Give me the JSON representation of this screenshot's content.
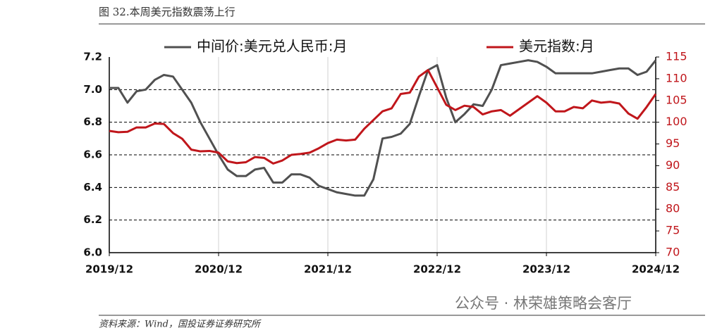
{
  "chart_data": {
    "type": "line",
    "title": "图 32.本周美元指数震荡上行",
    "source": "资料来源：Wind，国投证券证券研究所",
    "watermark": "公众号 · 林荣雄策略会客厅",
    "categories": [
      "2019/12",
      null,
      null,
      null,
      null,
      null,
      null,
      null,
      null,
      null,
      null,
      null,
      "2020/12",
      null,
      null,
      null,
      null,
      null,
      null,
      null,
      null,
      null,
      null,
      null,
      "2021/12",
      null,
      null,
      null,
      null,
      null,
      null,
      null,
      null,
      null,
      null,
      null,
      "2022/12",
      null,
      null,
      null,
      null,
      null,
      null,
      null,
      null,
      null,
      null,
      null,
      "2023/12",
      null,
      null,
      null,
      null,
      null,
      null,
      null,
      null,
      null,
      null,
      null,
      "2024/12"
    ],
    "series": [
      {
        "name": "中间价:美元兑人民币:月",
        "color": "#505050",
        "axis": "y",
        "values": [
          7.01,
          7.01,
          6.92,
          6.99,
          7.0,
          7.06,
          7.09,
          7.08,
          7.0,
          6.92,
          6.8,
          6.7,
          6.6,
          6.51,
          6.47,
          6.47,
          6.51,
          6.52,
          6.43,
          6.43,
          6.48,
          6.48,
          6.46,
          6.41,
          6.39,
          6.37,
          6.36,
          6.35,
          6.35,
          6.45,
          6.7,
          6.71,
          6.73,
          6.79,
          6.96,
          7.12,
          7.15,
          6.95,
          6.8,
          6.85,
          6.91,
          6.9,
          7.0,
          7.15,
          7.16,
          7.17,
          7.18,
          7.17,
          7.14,
          7.1,
          7.1,
          7.1,
          7.1,
          7.1,
          7.11,
          7.12,
          7.13,
          7.13,
          7.09,
          7.11,
          7.18
        ]
      },
      {
        "name": "美元指数:月",
        "color": "#c0161b",
        "axis": "y2",
        "values": [
          98.0,
          97.7,
          97.8,
          98.8,
          98.8,
          99.7,
          99.6,
          97.5,
          96.2,
          93.7,
          93.3,
          93.4,
          93.0,
          91.0,
          90.6,
          90.8,
          92.0,
          91.8,
          90.5,
          91.2,
          92.5,
          92.7,
          93.0,
          94.0,
          95.2,
          96.0,
          95.8,
          96.0,
          98.5,
          100.5,
          102.5,
          103.2,
          106.5,
          106.8,
          110.5,
          112.0,
          108.0,
          104.0,
          102.8,
          103.8,
          103.5,
          101.8,
          102.5,
          102.8,
          101.5,
          103.0,
          104.5,
          106.0,
          104.5,
          102.5,
          102.5,
          103.5,
          103.2,
          105.0,
          104.5,
          104.7,
          104.3,
          102.0,
          100.8,
          103.5,
          106.5
        ]
      }
    ],
    "ylim": [
      6.0,
      7.2
    ],
    "yticks": [
      {
        "value": 6,
        "label": "6.0"
      },
      6.2,
      6.4,
      6.6,
      6.8,
      {
        "value": 7,
        "label": "7.0"
      },
      7.2
    ],
    "y2lim": [
      70,
      115
    ],
    "y2ticks": [
      70,
      75,
      80,
      85,
      90,
      95,
      100,
      105,
      110,
      115
    ],
    "grid": true
  }
}
